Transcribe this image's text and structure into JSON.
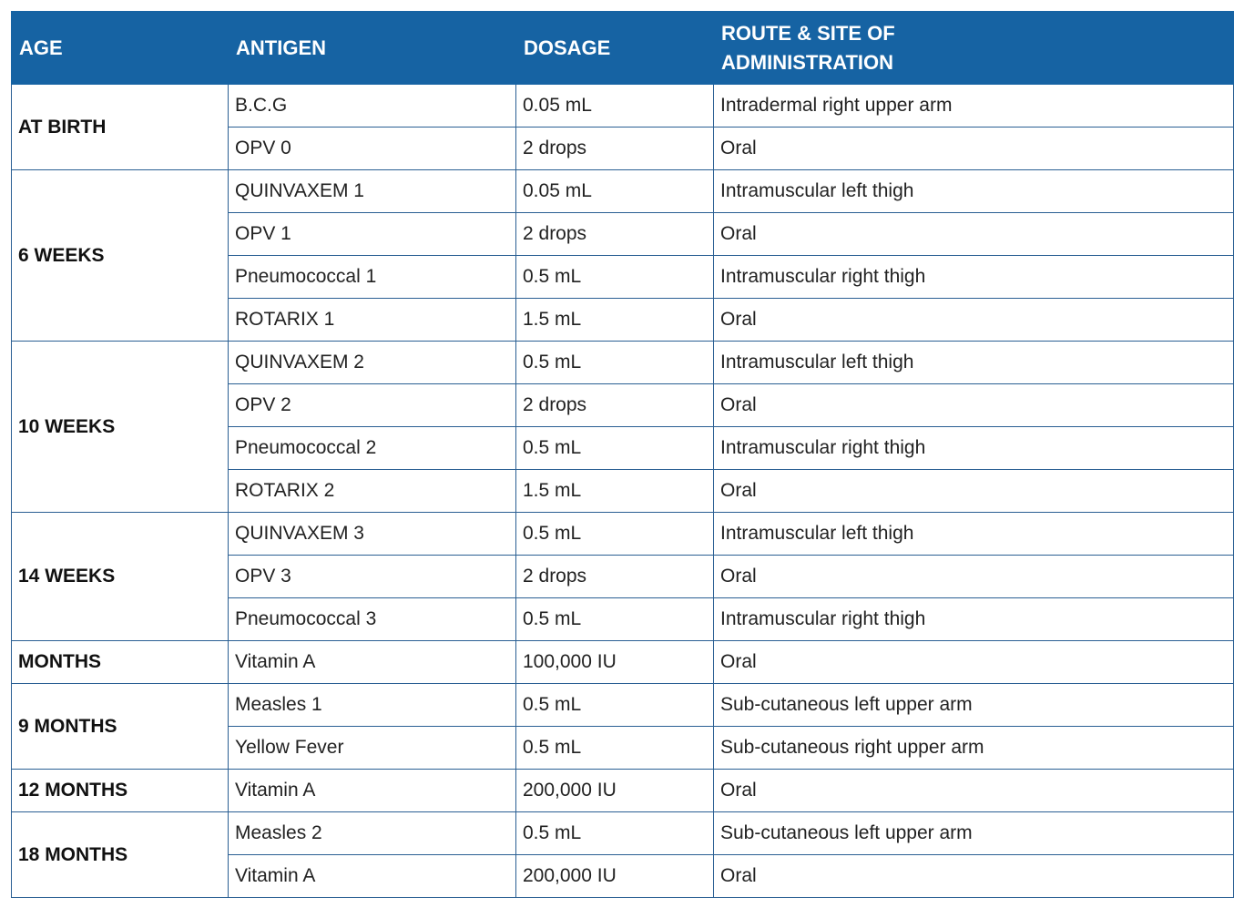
{
  "headers": {
    "age": "AGE",
    "antigen": "ANTIGEN",
    "dosage": "DOSAGE",
    "route_line1": "ROUTE & SITE OF",
    "route_line2": "ADMINISTRATION"
  },
  "groups": [
    {
      "age": "AT BIRTH",
      "rows": [
        {
          "antigen": "B.C.G",
          "dosage": "0.05 mL",
          "route": "Intradermal right upper arm"
        },
        {
          "antigen": "OPV 0",
          "dosage": "2 drops",
          "route": "Oral"
        }
      ]
    },
    {
      "age": "6 WEEKS",
      "rows": [
        {
          "antigen": "QUINVAXEM 1",
          "dosage": "0.05 mL",
          "route": "Intramuscular left thigh"
        },
        {
          "antigen": "OPV 1",
          "dosage": "2 drops",
          "route": "Oral"
        },
        {
          "antigen": "Pneumococcal 1",
          "dosage": "0.5 mL",
          "route": "Intramuscular right thigh"
        },
        {
          "antigen": "ROTARIX 1",
          "dosage": "1.5 mL",
          "route": "Oral"
        }
      ]
    },
    {
      "age": "10 WEEKS",
      "rows": [
        {
          "antigen": "QUINVAXEM 2",
          "dosage": "0.5 mL",
          "route": "Intramuscular left thigh"
        },
        {
          "antigen": "OPV 2",
          "dosage": "2 drops",
          "route": "Oral"
        },
        {
          "antigen": "Pneumococcal 2",
          "dosage": "0.5 mL",
          "route": "Intramuscular right thigh"
        },
        {
          "antigen": "ROTARIX 2",
          "dosage": "1.5 mL",
          "route": "Oral"
        }
      ]
    },
    {
      "age": "14 WEEKS",
      "rows": [
        {
          "antigen": "QUINVAXEM 3",
          "dosage": "0.5 mL",
          "route": "Intramuscular left thigh"
        },
        {
          "antigen": "OPV 3",
          "dosage": "2 drops",
          "route": "Oral"
        },
        {
          "antigen": "Pneumococcal 3",
          "dosage": "0.5 mL",
          "route": "Intramuscular right thigh"
        }
      ]
    },
    {
      "age": "MONTHS",
      "rows": [
        {
          "antigen": "Vitamin A",
          "dosage": "100,000 IU",
          "route": "Oral"
        }
      ]
    },
    {
      "age": "9 MONTHS",
      "rows": [
        {
          "antigen": "Measles 1",
          "dosage": "0.5 mL",
          "route": "Sub-cutaneous left upper arm"
        },
        {
          "antigen": "Yellow Fever",
          "dosage": "0.5 mL",
          "route": "Sub-cutaneous right upper arm"
        }
      ]
    },
    {
      "age": "12 MONTHS",
      "rows": [
        {
          "antigen": "Vitamin A",
          "dosage": "200,000 IU",
          "route": "Oral"
        }
      ]
    },
    {
      "age": "18 MONTHS",
      "rows": [
        {
          "antigen": "Measles 2",
          "dosage": "0.5 mL",
          "route": "Sub-cutaneous left upper arm"
        },
        {
          "antigen": "Vitamin A",
          "dosage": "200,000 IU",
          "route": "Oral"
        }
      ]
    }
  ],
  "colors": {
    "header_background": "#1663a3",
    "header_text": "#ffffff",
    "border": "#2a5f93"
  }
}
